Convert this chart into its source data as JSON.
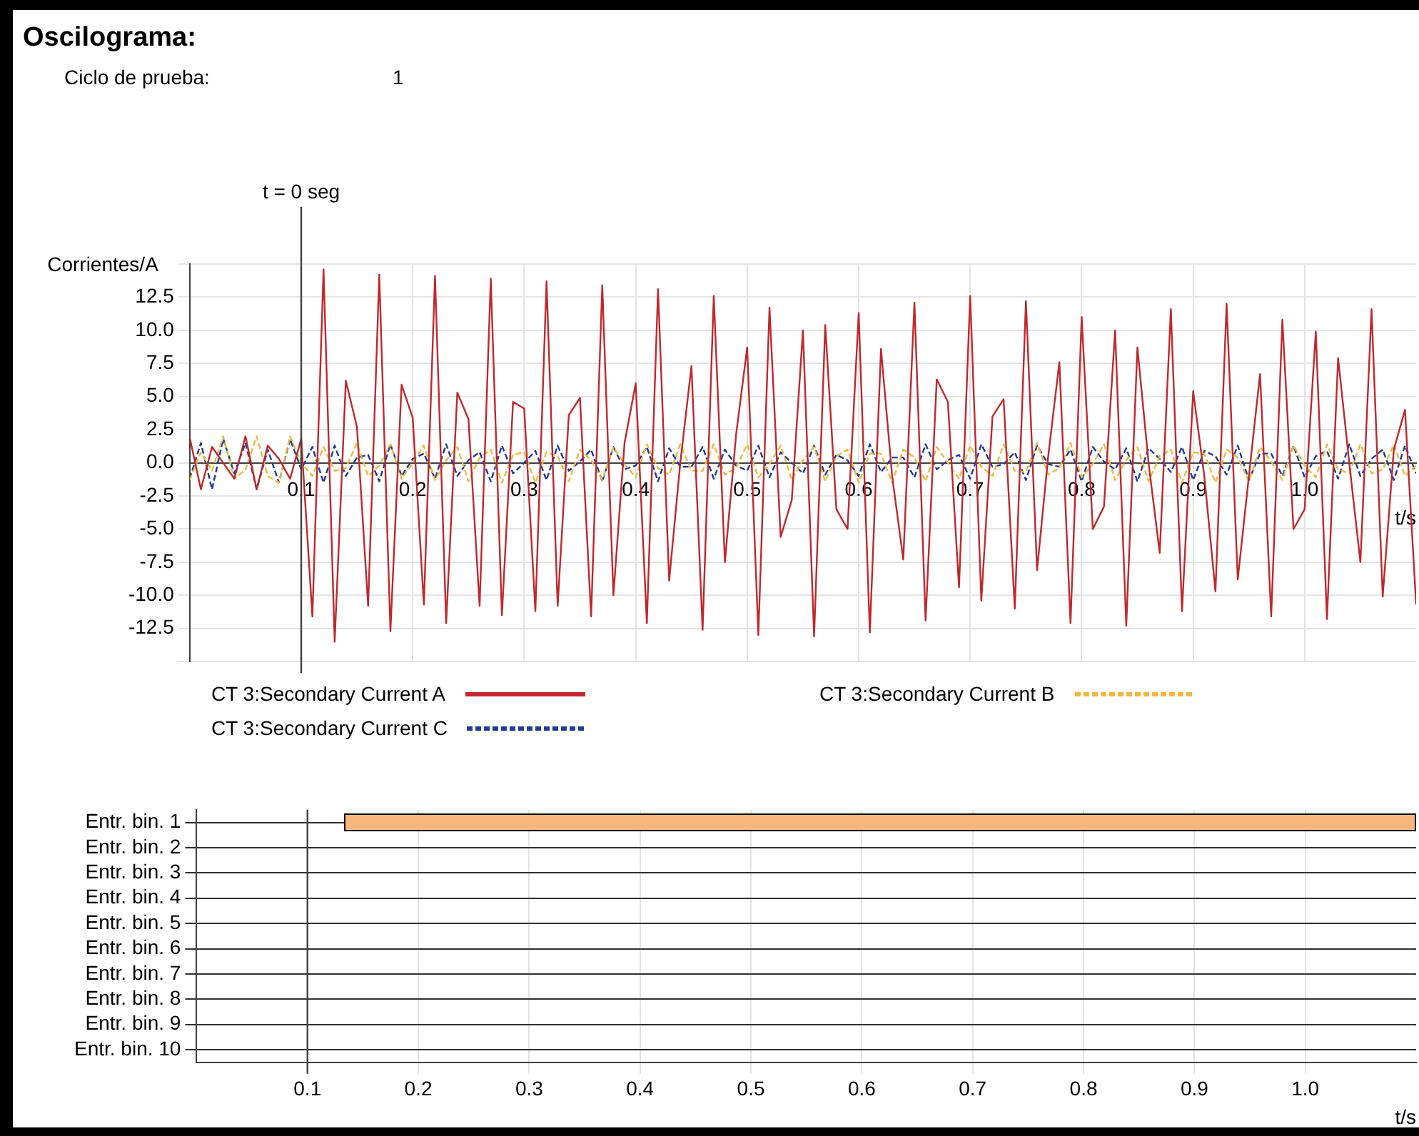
{
  "chart_data": [
    {
      "type": "line",
      "title": "Oscilograma:",
      "annotations": [
        "Ciclo de prueba:",
        "1"
      ],
      "ylabel": "Corrientes/A",
      "xlabel": "t/s",
      "x": [
        0,
        0.01,
        0.02,
        0.03,
        0.04,
        0.05,
        0.06,
        0.07,
        0.08,
        0.09,
        0.1,
        0.11,
        0.12,
        0.13,
        0.14,
        0.15,
        0.16,
        0.17,
        0.18,
        0.19,
        0.2,
        0.21,
        0.22,
        0.23,
        0.24,
        0.25,
        0.26,
        0.27,
        0.28,
        0.29,
        0.3,
        0.31,
        0.32,
        0.33,
        0.34,
        0.35,
        0.36,
        0.37,
        0.38,
        0.39,
        0.4,
        0.41,
        0.42,
        0.43,
        0.44,
        0.45,
        0.46,
        0.47,
        0.48,
        0.49,
        0.5,
        0.51,
        0.52,
        0.53,
        0.54,
        0.55,
        0.56,
        0.57,
        0.58,
        0.59,
        0.6,
        0.61,
        0.62,
        0.63,
        0.64,
        0.65,
        0.66,
        0.67,
        0.68,
        0.69,
        0.7,
        0.71,
        0.72,
        0.73,
        0.74,
        0.75,
        0.76,
        0.77,
        0.78,
        0.79,
        0.8,
        0.81,
        0.82,
        0.83,
        0.84,
        0.85,
        0.86,
        0.87,
        0.88,
        0.89,
        0.9,
        0.91,
        0.92,
        0.93,
        0.94,
        0.95,
        0.96,
        0.97,
        0.98,
        0.99,
        1,
        1.01,
        1.02,
        1.03,
        1.04,
        1.05,
        1.06,
        1.07,
        1.08,
        1.09,
        1.1
      ],
      "series": [
        {
          "name": "CT 3:Secondary Current A",
          "color": "#c0282d",
          "line_style": "solid",
          "values": [
            1.9,
            -2.0,
            1.2,
            0.0,
            -1.2,
            2.0,
            -2.0,
            1.3,
            0.3,
            -1.2,
            1.8,
            -11.6,
            14.6,
            -13.5,
            6.2,
            2.7,
            -10.8,
            14.2,
            -12.7,
            5.9,
            3.4,
            -10.7,
            14.1,
            -12.1,
            5.3,
            3.3,
            -10.8,
            13.9,
            -11.5,
            4.6,
            4.1,
            -11.2,
            13.7,
            -10.8,
            3.6,
            4.9,
            -11.6,
            13.4,
            -10.0,
            1.5,
            6.0,
            -12.1,
            13.1,
            -8.9,
            0.0,
            7.3,
            -12.6,
            12.6,
            -7.5,
            2.1,
            8.7,
            -13.0,
            11.7,
            -5.6,
            -2.8,
            10.0,
            -13.1,
            10.4,
            -3.5,
            -5.0,
            11.3,
            -12.8,
            8.6,
            -1.0,
            -7.3,
            12.1,
            -11.9,
            6.3,
            4.6,
            -9.4,
            12.6,
            -10.4,
            3.5,
            4.8,
            -11.0,
            12.2,
            -8.1,
            0.5,
            7.6,
            -12.1,
            11.0,
            -5.0,
            -3.3,
            10.0,
            -12.3,
            8.7,
            0.0,
            -6.8,
            11.6,
            -11.2,
            5.4,
            -1.0,
            -9.7,
            12.0,
            -8.8,
            -1.0,
            6.7,
            -11.6,
            10.8,
            -5.0,
            -3.5,
            9.9,
            -11.8,
            7.9,
            0.0,
            -7.5,
            11.6,
            -10.1,
            1.0,
            4.0,
            -10.7
          ]
        },
        {
          "name": "CT 3:Secondary Current B",
          "color": "#f0b840",
          "line_style": "dashed",
          "values": [
            -1.3,
            0.8,
            -0.6,
            2.0,
            -1.2,
            -0.5,
            2.0,
            -1.0,
            -1.5,
            2.0,
            0.0,
            -1.0,
            1.2,
            -0.6,
            -0.4,
            1.5,
            -1.0,
            -0.2,
            1.4,
            -1.2,
            0.0,
            1.3,
            -1.3,
            0.2,
            1.2,
            -1.4,
            0.4,
            1.0,
            -1.5,
            0.6,
            0.8,
            -1.5,
            0.8,
            0.5,
            -1.4,
            1.0,
            0.2,
            -1.3,
            1.2,
            -0.1,
            -1.1,
            1.4,
            -0.4,
            -0.9,
            1.4,
            -0.6,
            -0.6,
            1.4,
            -0.9,
            -0.4,
            1.4,
            -1.1,
            -0.1,
            1.3,
            -1.3,
            0.2,
            1.2,
            -1.4,
            0.5,
            1.0,
            -1.5,
            0.7,
            0.7,
            -1.5,
            1.0,
            0.4,
            -1.4,
            1.2,
            0.0,
            -1.2,
            1.3,
            -0.3,
            -1.0,
            1.4,
            -0.6,
            -0.7,
            1.5,
            -0.9,
            -0.4,
            1.5,
            -1.1,
            -0.1,
            1.4,
            -1.3,
            0.2,
            1.2,
            -1.4,
            0.5,
            1.0,
            -1.5,
            0.8,
            0.7,
            -1.5,
            1.0,
            0.4,
            -1.4,
            1.2,
            0.1,
            -1.3,
            1.3,
            -0.2,
            -1.1,
            1.4,
            -0.5,
            -0.8,
            1.4,
            -0.8,
            -0.5,
            1.4,
            -1.0,
            -0.2
          ]
        },
        {
          "name": "CT 3:Secondary Current C",
          "color": "#1f3a93",
          "line_style": "dashed",
          "values": [
            -1.2,
            1.5,
            -2.0,
            1.8,
            -0.8,
            1.5,
            -2.0,
            1.0,
            -1.5,
            1.8,
            -0.5,
            1.2,
            -1.5,
            1.3,
            -1.0,
            0.4,
            0.6,
            -1.4,
            1.4,
            -1.0,
            0.3,
            0.7,
            -1.2,
            1.4,
            -1.0,
            0.2,
            0.8,
            -1.4,
            1.3,
            -0.8,
            0.0,
            0.9,
            -1.3,
            1.3,
            -0.6,
            0.1,
            1.0,
            -1.4,
            1.2,
            -0.5,
            -0.2,
            1.2,
            -1.4,
            1.1,
            -0.3,
            -0.3,
            1.2,
            -1.2,
            1.0,
            -0.2,
            -0.6,
            1.3,
            -1.1,
            0.8,
            0.0,
            -0.8,
            1.3,
            -0.9,
            0.6,
            0.2,
            -1.0,
            1.4,
            -0.7,
            0.4,
            0.4,
            -1.1,
            1.4,
            -0.5,
            0.2,
            0.6,
            -1.2,
            1.4,
            -0.3,
            -0.1,
            0.8,
            -1.3,
            1.3,
            -0.1,
            -0.3,
            1.0,
            -1.4,
            1.2,
            0.1,
            -0.5,
            1.1,
            -1.4,
            1.1,
            0.3,
            -0.7,
            1.2,
            -1.3,
            0.9,
            0.5,
            -0.9,
            1.3,
            -1.3,
            0.7,
            0.7,
            -1.0,
            1.3,
            -1.1,
            0.5,
            0.9,
            -1.2,
            1.4,
            -1.0,
            0.3,
            1.0,
            -1.3,
            1.3,
            -0.8
          ]
        }
      ],
      "xlim": [
        0,
        1.1
      ],
      "xticks": [
        0.1,
        0.2,
        0.3,
        0.4,
        0.5,
        0.6,
        0.7,
        0.8,
        0.9,
        {
          "value": 1,
          "label": "1.0"
        }
      ],
      "ylim": [
        -15,
        15
      ],
      "yticks": [
        {
          "value": -15,
          "label": null
        },
        -12.5,
        {
          "value": -10,
          "label": "-10.0"
        },
        -7.5,
        {
          "value": -5,
          "label": "-5.0"
        },
        -2.5,
        {
          "value": 0,
          "label": "0.0"
        },
        2.5,
        {
          "value": 5,
          "label": "5.0"
        },
        7.5,
        {
          "value": 10,
          "label": "10.0"
        },
        12.5,
        {
          "value": 15,
          "label": null
        }
      ],
      "grid": true,
      "legend": "bottom",
      "marker": "none",
      "ref_lines": [
        {
          "axis": "x",
          "value": 0.1,
          "label": "t = 0 seg",
          "color": "#404040"
        }
      ]
    },
    {
      "type": "bar",
      "orientation": "horizontal",
      "categories": [
        "Entr. bin. 1",
        "Entr. bin. 2",
        "Entr. bin. 3",
        "Entr. bin. 4",
        "Entr. bin. 5",
        "Entr. bin. 6",
        "Entr. bin. 7",
        "Entr. bin. 8",
        "Entr. bin. 9",
        "Entr. bin. 10"
      ],
      "values": [
        0.967,
        null,
        null,
        null,
        null,
        null,
        null,
        null,
        null,
        null
      ],
      "base": [
        0.133,
        null,
        null,
        null,
        null,
        null,
        null,
        null,
        null,
        null
      ],
      "color": "#f8b87c",
      "xlabel": "t/s",
      "xlim": [
        0,
        1.1
      ],
      "xticks": [
        0.1,
        0.2,
        0.3,
        0.4,
        0.5,
        0.6,
        0.7,
        0.8,
        0.9,
        {
          "value": 1,
          "label": "1.0"
        }
      ],
      "grid": true,
      "ref_lines": [
        {
          "axis": "x",
          "value": 0.1,
          "color": "#404040"
        }
      ]
    }
  ]
}
